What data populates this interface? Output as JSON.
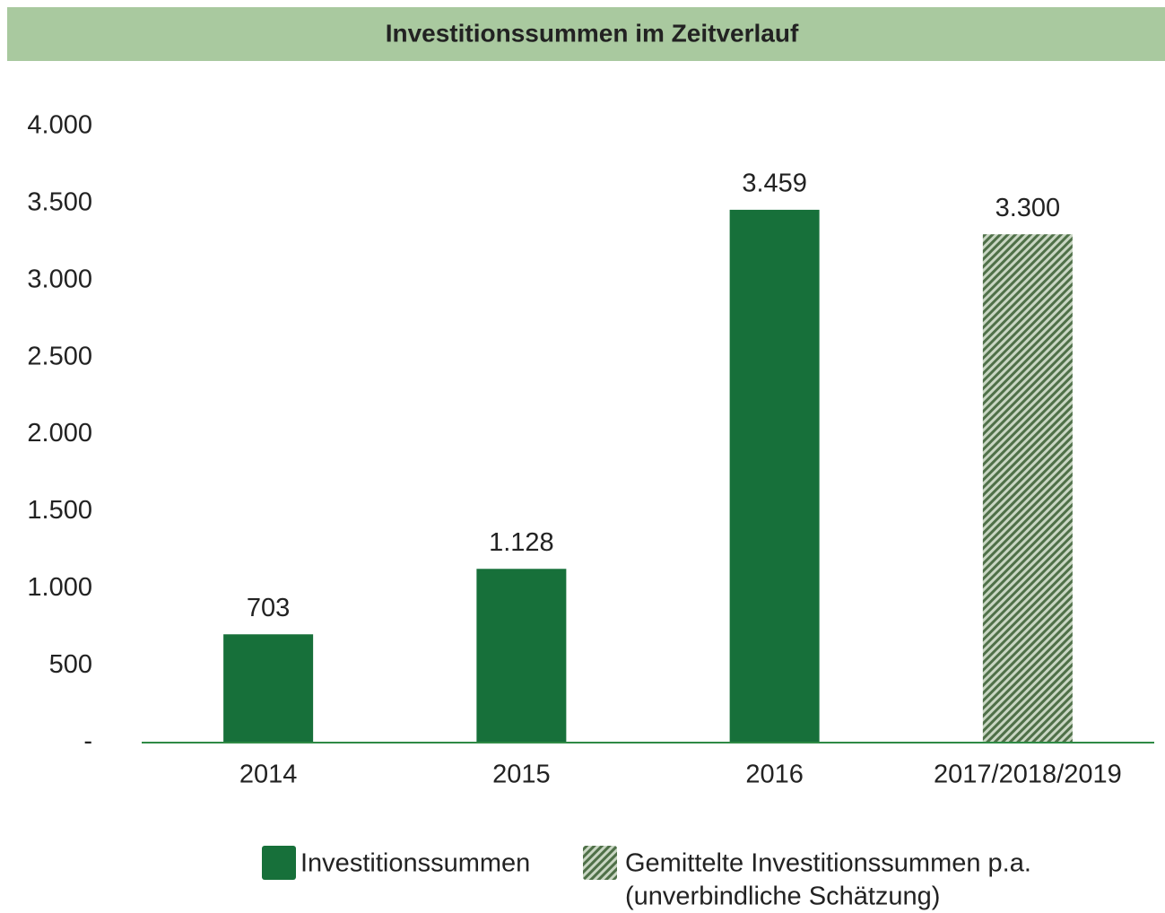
{
  "chart_data": {
    "type": "bar",
    "title": "Investitionssummen im Zeitverlauf",
    "categories": [
      "2014",
      "2015",
      "2016",
      "2017/2018/2019"
    ],
    "series": [
      {
        "name": [
          "Investitionssummen"
        ],
        "color": "#17703a",
        "hatch": false,
        "values": [
          703,
          1128,
          3459,
          null
        ],
        "value_labels": [
          "703",
          "1.128",
          "3.459",
          null
        ]
      },
      {
        "name": [
          "Gemittelte Investitionssummen p.a.",
          "(unverbindliche Schätzung)"
        ],
        "color": "#6f8a68",
        "hatch": true,
        "values": [
          null,
          null,
          null,
          3300
        ],
        "value_labels": [
          null,
          null,
          null,
          "3.300"
        ]
      }
    ],
    "ylim": [
      0,
      4000
    ],
    "yticks": [
      {
        "value": 0,
        "label": "-"
      },
      500,
      {
        "value": 1000,
        "label": "1.000"
      },
      {
        "value": 1500,
        "label": "1.500"
      },
      {
        "value": 2000,
        "label": "2.000"
      },
      {
        "value": 2500,
        "label": "2.500"
      },
      {
        "value": 3000,
        "label": "3.000"
      },
      {
        "value": 3500,
        "label": "3.500"
      },
      {
        "value": 4000,
        "label": "4.000"
      }
    ],
    "grid": false
  }
}
